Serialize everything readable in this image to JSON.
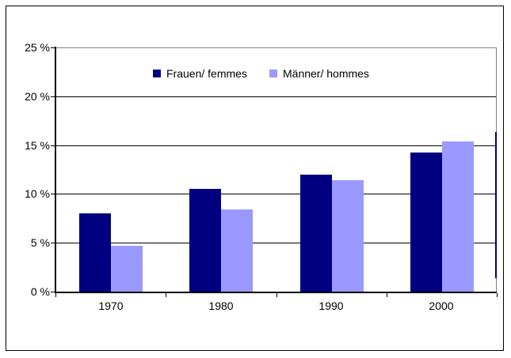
{
  "chart_data": {
    "type": "bar",
    "title": "",
    "xlabel": "",
    "ylabel": "",
    "categories": [
      "1970",
      "1980",
      "1990",
      "2000"
    ],
    "series": [
      {
        "name": "Frauen/ femmes",
        "color": "#000080",
        "values": [
          8.0,
          10.5,
          12.0,
          14.2
        ]
      },
      {
        "name": "Männer/ hommes",
        "color": "#9999FF",
        "values": [
          4.7,
          8.4,
          11.4,
          15.4
        ]
      }
    ],
    "ylim": [
      0,
      25
    ],
    "ytick_values": [
      0,
      5,
      10,
      15,
      20,
      25
    ],
    "ytick_labels": [
      "0 %",
      "5 %",
      "10 %",
      "15 %",
      "20 %",
      "25 %"
    ],
    "grid": true,
    "legend_position": "top-center"
  },
  "colors": {
    "background": "#FFFFFF",
    "frame_border": "#000000",
    "axis": "#000000",
    "gridline": "#000000",
    "plot_border": "#808080"
  }
}
